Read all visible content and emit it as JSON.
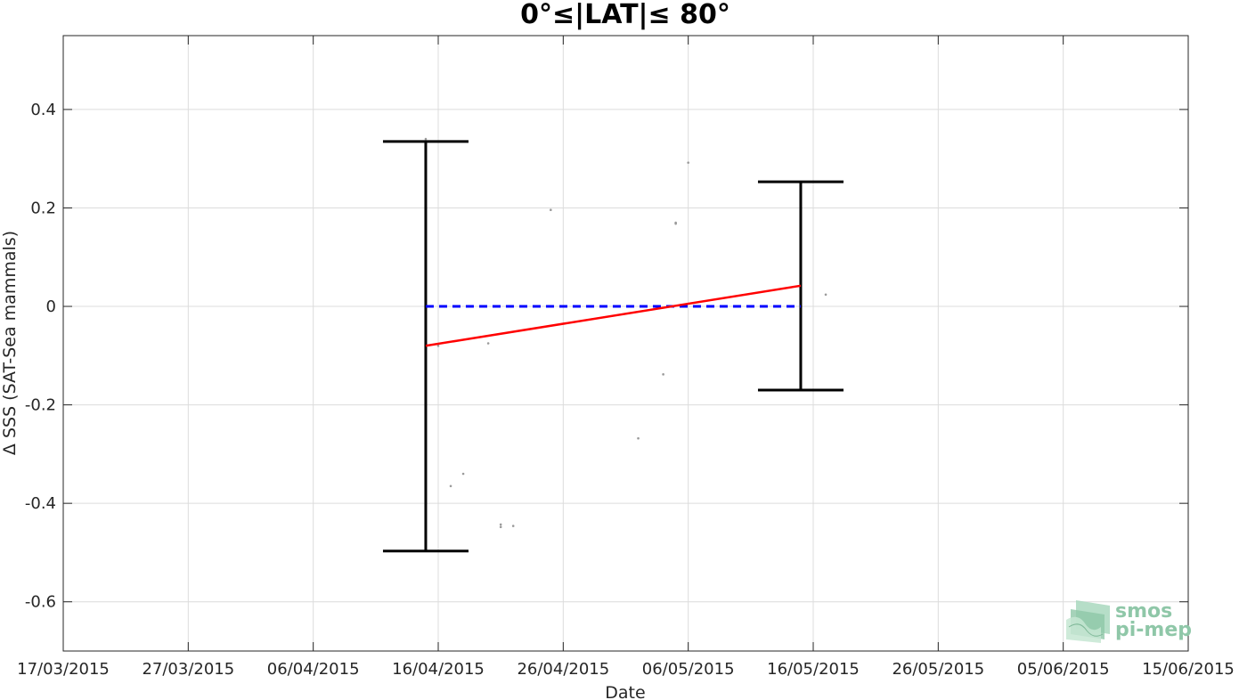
{
  "chart_data": {
    "type": "scatter",
    "title": "0°≤|LAT|≤ 80°",
    "xlabel": "Date",
    "ylabel": "Δ SSS (SAT-Sea mammals)",
    "xlim": [
      "2015-03-17",
      "2015-06-15"
    ],
    "ylim": [
      -0.7,
      0.55
    ],
    "x_ticks": [
      "17/03/2015",
      "27/03/2015",
      "06/04/2015",
      "16/04/2015",
      "26/04/2015",
      "06/05/2015",
      "16/05/2015",
      "26/05/2015",
      "05/06/2015",
      "15/06/2015"
    ],
    "y_ticks": [
      0.4,
      0.2,
      0,
      -0.2,
      -0.4,
      -0.6
    ],
    "y_tick_labels": [
      "0.4",
      "0.2",
      "0",
      "-0.2",
      "-0.4",
      "-0.6"
    ],
    "grid": true,
    "points": [
      {
        "x": "2015-04-15",
        "y": 0.34
      },
      {
        "x": "2015-04-16",
        "y": -0.08
      },
      {
        "x": "2015-04-17",
        "y": -0.365
      },
      {
        "x": "2015-04-18",
        "y": -0.34
      },
      {
        "x": "2015-04-20",
        "y": -0.075
      },
      {
        "x": "2015-04-21",
        "y": -0.443
      },
      {
        "x": "2015-04-21",
        "y": -0.448
      },
      {
        "x": "2015-04-22",
        "y": -0.446
      },
      {
        "x": "2015-04-25",
        "y": 0.196
      },
      {
        "x": "2015-05-02",
        "y": -0.268
      },
      {
        "x": "2015-05-04",
        "y": -0.138
      },
      {
        "x": "2015-05-05",
        "y": 0.17
      },
      {
        "x": "2015-05-05",
        "y": 0.168
      },
      {
        "x": "2015-05-06",
        "y": 0.292
      },
      {
        "x": "2015-05-17",
        "y": 0.024
      }
    ],
    "error_bars": [
      {
        "x": "2015-04-15",
        "low": -0.497,
        "high": 0.335
      },
      {
        "x": "2015-05-15",
        "low": -0.17,
        "high": 0.253
      }
    ],
    "mean_line": {
      "x": [
        "2015-04-15",
        "2015-05-15"
      ],
      "y": [
        0,
        0
      ],
      "color": "#0000ff",
      "style": "dashed"
    },
    "trend_line": {
      "x": [
        "2015-04-15",
        "2015-05-15"
      ],
      "y": [
        -0.08,
        0.042
      ],
      "color": "#ff0000",
      "style": "solid"
    },
    "point_color": "#9a9a9a",
    "error_bar_color": "#000000"
  },
  "logo": {
    "line1": "smos",
    "line2": "pi-mep",
    "color": "#8fc7a8"
  }
}
